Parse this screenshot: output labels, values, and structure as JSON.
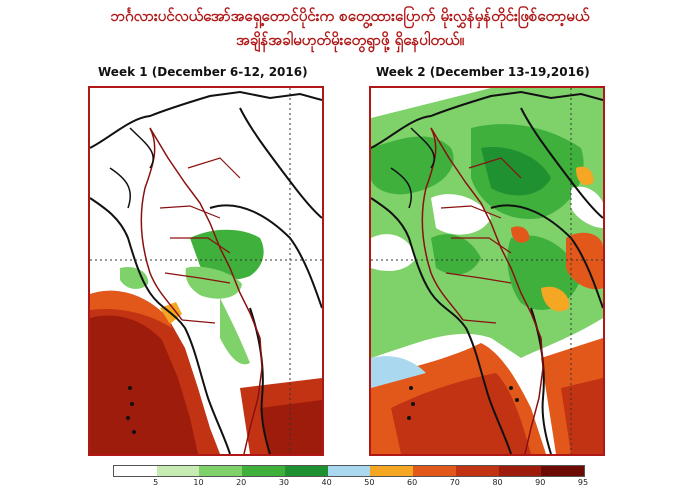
{
  "header": {
    "line1": "ဘင်္ဂလားပင်လယ်အော်အရှေ့တောင်ပိုင်းက စတွေ့ထားပြောက် မိုးလွှန်မှန်တိုင်းဖြစ်တော့မယ်",
    "line2": "အချိန်အခါမဟုတ်မိုးတွေရွာဖို့ ရှိနေပါတယ်။"
  },
  "panels": [
    {
      "title": "Week 1 (December 6-12,  2016)"
    },
    {
      "title": "Week 2 (December 13-19,2016)"
    }
  ],
  "legend": {
    "colors": [
      "#ffffff",
      "#c6ecb4",
      "#7fd16a",
      "#3fb03c",
      "#1f9130",
      "#a9d8ef",
      "#f5a623",
      "#e2581b",
      "#c23313",
      "#9e1c0b",
      "#6e0a04"
    ],
    "ticks": [
      "5",
      "10",
      "20",
      "30",
      "40",
      "50",
      "60",
      "70",
      "80",
      "90",
      "95"
    ]
  },
  "colors": {
    "title": "#b01818",
    "frame": "#b01818",
    "border_lines": "#8a1010",
    "coast": "#111111",
    "green_light": "#7fd16a",
    "green": "#3fb03c",
    "green_dark": "#1f9130",
    "orange": "#e2581b",
    "red": "#c23313",
    "dark_red": "#8e1808"
  }
}
